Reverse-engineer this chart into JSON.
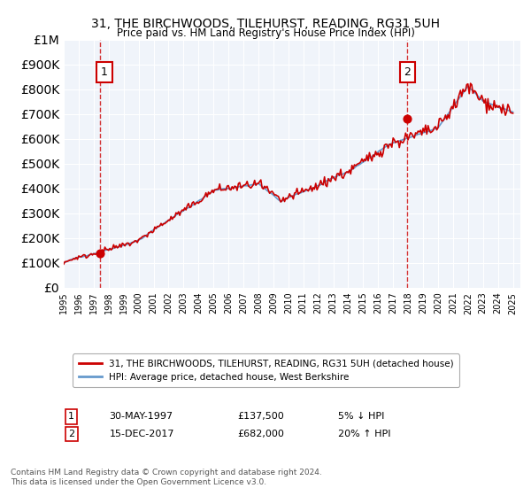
{
  "title": "31, THE BIRCHWOODS, TILEHURST, READING, RG31 5UH",
  "subtitle": "Price paid vs. HM Land Registry's House Price Index (HPI)",
  "legend_line1": "31, THE BIRCHWOODS, TILEHURST, READING, RG31 5UH (detached house)",
  "legend_line2": "HPI: Average price, detached house, West Berkshire",
  "annotation1_label": "1",
  "annotation1_date": "30-MAY-1997",
  "annotation1_price": "£137,500",
  "annotation1_hpi": "5% ↓ HPI",
  "annotation1_year": 1997.4,
  "annotation1_value": 137500,
  "annotation2_label": "2",
  "annotation2_date": "15-DEC-2017",
  "annotation2_price": "£682,000",
  "annotation2_hpi": "20% ↑ HPI",
  "annotation2_year": 2017.96,
  "annotation2_value": 682000,
  "price_color": "#cc0000",
  "hpi_color": "#6699cc",
  "background_color": "#e8f0f8",
  "plot_bg_color": "#f0f4fa",
  "ylim_min": 0,
  "ylim_max": 1000000,
  "footer": "Contains HM Land Registry data © Crown copyright and database right 2024.\nThis data is licensed under the Open Government Licence v3.0."
}
